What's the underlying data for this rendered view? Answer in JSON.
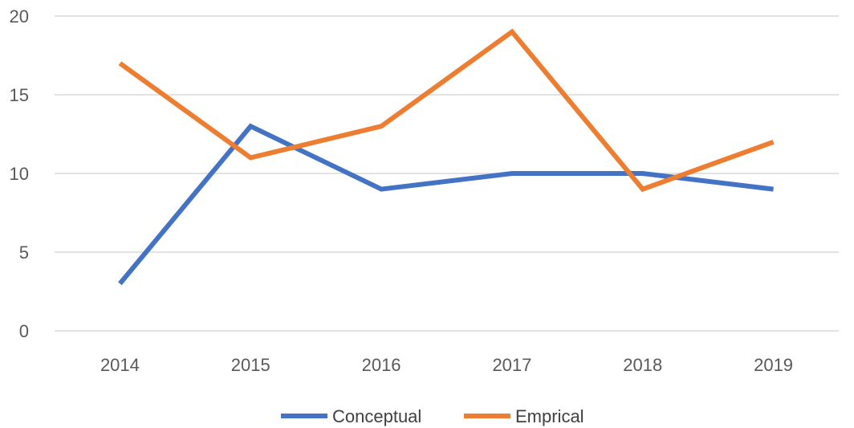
{
  "chart_data": {
    "type": "line",
    "title": "",
    "xlabel": "",
    "ylabel": "",
    "categories": [
      "2014",
      "2015",
      "2016",
      "2017",
      "2018",
      "2019"
    ],
    "yticks": [
      "0",
      "5",
      "10",
      "15",
      "20"
    ],
    "ylim": [
      0,
      20
    ],
    "grid": true,
    "legend_position": "bottom",
    "series": [
      {
        "name": "Conceptual",
        "color": "#4472c4",
        "values": [
          3,
          13,
          9,
          10,
          10,
          9
        ]
      },
      {
        "name": "Emprical",
        "color": "#ed7d31",
        "values": [
          17,
          11,
          13,
          19,
          9,
          12
        ]
      }
    ]
  }
}
